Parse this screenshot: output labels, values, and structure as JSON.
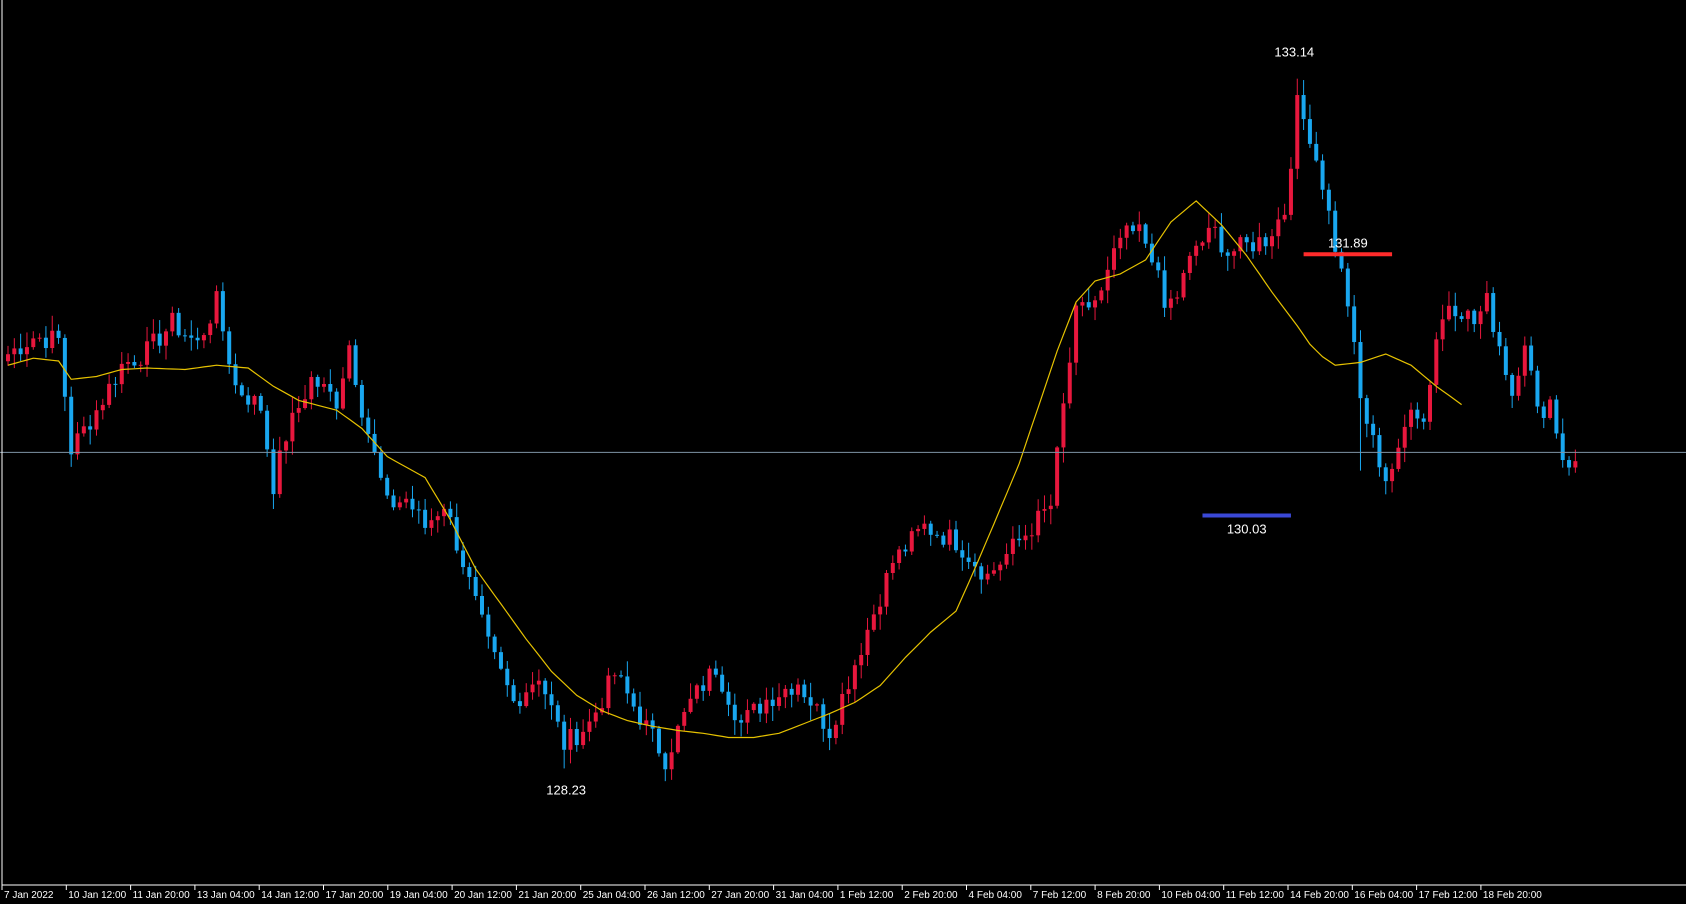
{
  "colors": {
    "background": "#000000",
    "bull": "#e8173d",
    "bear": "#19a7f0",
    "moving_average": "#e6c200",
    "price_line": "#7f95a6",
    "resistance": "#ff2b2b",
    "support": "#3a48d6",
    "text": "#ffffff",
    "axis": "#ffffff"
  },
  "chart_data": {
    "type": "candlestick",
    "grid": false,
    "ylim": [
      127.4,
      133.7
    ],
    "x_tick_labels": [
      "7 Jan 2022",
      "10 Jan 12:00",
      "11 Jan 20:00",
      "13 Jan 04:00",
      "14 Jan 12:00",
      "17 Jan 20:00",
      "19 Jan 04:00",
      "20 Jan 12:00",
      "21 Jan 20:00",
      "25 Jan 04:00",
      "26 Jan 12:00",
      "27 Jan 20:00",
      "31 Jan 04:00",
      "1 Feb 12:00",
      "2 Feb 20:00",
      "4 Feb 04:00",
      "7 Feb 12:00",
      "8 Feb 20:00",
      "10 Feb 04:00",
      "11 Feb 12:00",
      "14 Feb 20:00",
      "16 Feb 04:00",
      "17 Feb 12:00",
      "18 Feb 20:00"
    ],
    "current_price": 130.48,
    "annotations": [
      {
        "label": "133.14",
        "value": 133.14
      },
      {
        "label": "128.23",
        "value": 128.23
      },
      {
        "label": "131.89",
        "value": 131.89,
        "line": "resistance",
        "from_candle": 205,
        "to_candle": 219
      },
      {
        "label": "130.03",
        "value": 130.03,
        "line": "support",
        "from_candle": 189,
        "to_candle": 203
      }
    ],
    "anchors": [
      [
        0,
        131.18
      ],
      [
        4,
        131.3
      ],
      [
        8,
        131.28
      ],
      [
        10,
        130.5
      ],
      [
        14,
        130.78
      ],
      [
        18,
        131.1
      ],
      [
        22,
        131.2
      ],
      [
        26,
        131.4
      ],
      [
        30,
        131.25
      ],
      [
        33,
        131.55
      ],
      [
        36,
        130.95
      ],
      [
        40,
        130.8
      ],
      [
        42,
        130.25
      ],
      [
        44,
        130.6
      ],
      [
        48,
        131.0
      ],
      [
        52,
        130.85
      ],
      [
        54,
        131.25
      ],
      [
        56,
        130.8
      ],
      [
        58,
        130.45
      ],
      [
        60,
        130.1
      ],
      [
        63,
        130.15
      ],
      [
        66,
        129.95
      ],
      [
        69,
        130.12
      ],
      [
        72,
        129.7
      ],
      [
        76,
        129.1
      ],
      [
        80,
        128.7
      ],
      [
        84,
        128.9
      ],
      [
        88,
        128.4
      ],
      [
        92,
        128.55
      ],
      [
        96,
        128.9
      ],
      [
        100,
        128.6
      ],
      [
        104,
        128.3
      ],
      [
        108,
        128.7
      ],
      [
        112,
        128.95
      ],
      [
        116,
        128.55
      ],
      [
        120,
        128.72
      ],
      [
        125,
        128.85
      ],
      [
        130,
        128.5
      ],
      [
        135,
        129.1
      ],
      [
        140,
        129.7
      ],
      [
        145,
        129.95
      ],
      [
        150,
        129.85
      ],
      [
        155,
        129.6
      ],
      [
        161,
        129.9
      ],
      [
        165,
        130.1
      ],
      [
        167,
        130.8
      ],
      [
        169,
        131.45
      ],
      [
        173,
        131.6
      ],
      [
        176,
        132.0
      ],
      [
        179,
        132.05
      ],
      [
        181,
        131.9
      ],
      [
        183,
        131.5
      ],
      [
        185,
        131.6
      ],
      [
        188,
        131.95
      ],
      [
        191,
        132.05
      ],
      [
        193,
        131.9
      ],
      [
        196,
        131.95
      ],
      [
        199,
        132.0
      ],
      [
        202,
        132.2
      ],
      [
        204,
        132.95
      ],
      [
        206,
        132.75
      ],
      [
        208,
        132.4
      ],
      [
        210,
        131.95
      ],
      [
        212,
        131.55
      ],
      [
        214,
        130.85
      ],
      [
        216,
        130.55
      ],
      [
        218,
        130.3
      ],
      [
        220,
        130.45
      ],
      [
        222,
        130.85
      ],
      [
        224,
        130.7
      ],
      [
        226,
        131.3
      ],
      [
        228,
        131.55
      ],
      [
        230,
        131.5
      ],
      [
        232,
        131.4
      ],
      [
        234,
        131.55
      ],
      [
        236,
        131.25
      ],
      [
        238,
        130.9
      ],
      [
        240,
        131.3
      ],
      [
        242,
        130.75
      ],
      [
        244,
        130.85
      ],
      [
        246,
        130.45
      ],
      [
        248,
        130.38
      ]
    ],
    "ma_anchors": [
      [
        0,
        131.1
      ],
      [
        4,
        131.15
      ],
      [
        8,
        131.13
      ],
      [
        10,
        131.0
      ],
      [
        14,
        131.02
      ],
      [
        18,
        131.07
      ],
      [
        22,
        131.08
      ],
      [
        28,
        131.07
      ],
      [
        33,
        131.1
      ],
      [
        38,
        131.08
      ],
      [
        42,
        130.95
      ],
      [
        46,
        130.85
      ],
      [
        52,
        130.78
      ],
      [
        56,
        130.65
      ],
      [
        60,
        130.45
      ],
      [
        66,
        130.3
      ],
      [
        70,
        130.0
      ],
      [
        74,
        129.65
      ],
      [
        78,
        129.4
      ],
      [
        82,
        129.15
      ],
      [
        86,
        128.92
      ],
      [
        90,
        128.75
      ],
      [
        94,
        128.64
      ],
      [
        98,
        128.57
      ],
      [
        102,
        128.53
      ],
      [
        106,
        128.5
      ],
      [
        110,
        128.48
      ],
      [
        114,
        128.45
      ],
      [
        118,
        128.45
      ],
      [
        122,
        128.48
      ],
      [
        126,
        128.55
      ],
      [
        130,
        128.62
      ],
      [
        134,
        128.7
      ],
      [
        138,
        128.82
      ],
      [
        142,
        129.02
      ],
      [
        146,
        129.2
      ],
      [
        150,
        129.35
      ],
      [
        152,
        129.55
      ],
      [
        156,
        129.97
      ],
      [
        160,
        130.4
      ],
      [
        163,
        130.8
      ],
      [
        166,
        131.2
      ],
      [
        169,
        131.55
      ],
      [
        172,
        131.7
      ],
      [
        176,
        131.75
      ],
      [
        180,
        131.85
      ],
      [
        184,
        132.12
      ],
      [
        188,
        132.27
      ],
      [
        192,
        132.1
      ],
      [
        196,
        131.88
      ],
      [
        200,
        131.62
      ],
      [
        204,
        131.38
      ],
      [
        206,
        131.25
      ],
      [
        208,
        131.16
      ],
      [
        210,
        131.1
      ],
      [
        214,
        131.12
      ],
      [
        218,
        131.18
      ],
      [
        222,
        131.1
      ],
      [
        226,
        130.95
      ],
      [
        230,
        130.82
      ]
    ],
    "candle_count": 249,
    "series": [
      {
        "name": "",
        "type": "candlestick"
      },
      {
        "name": "",
        "type": "moving_average"
      }
    ]
  }
}
